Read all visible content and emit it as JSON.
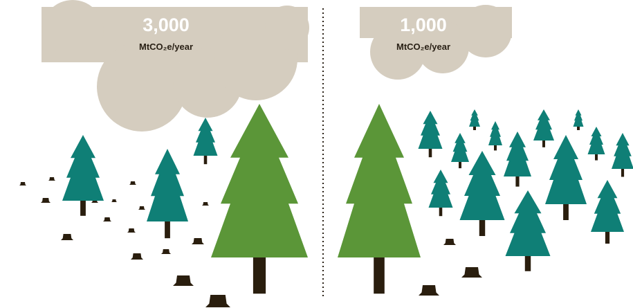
{
  "left": {
    "value": "3,000",
    "unit": "MtCO₂e/year"
  },
  "right": {
    "value": "1,000",
    "unit": "MtCO₂e/year"
  }
}
